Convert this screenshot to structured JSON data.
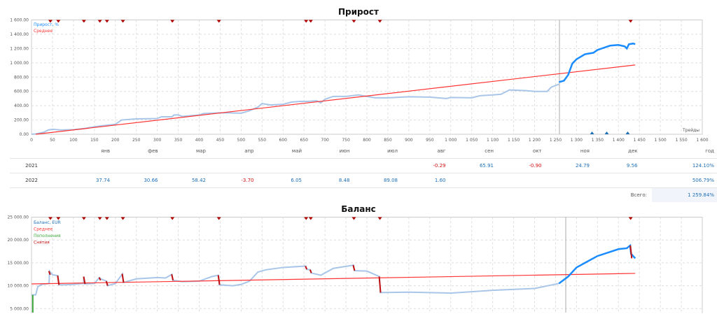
{
  "growth": {
    "title": "Прирост",
    "legend": [
      "Прирост, %",
      "Среднее"
    ],
    "x_axis_label": "Трейды",
    "y_ticks": [
      "0.00",
      "200.00",
      "400.00",
      "600.00",
      "800.00",
      "1 000.00",
      "1 200.00",
      "1 400.00",
      "1 600.00"
    ],
    "x_ticks": [
      "0",
      "50",
      "100",
      "150",
      "200",
      "250",
      "300",
      "350",
      "400",
      "450",
      "500",
      "550",
      "600",
      "650",
      "700",
      "750",
      "800",
      "850",
      "900",
      "950",
      "1 000",
      "1 050",
      "1 100",
      "1 150",
      "1 200",
      "1 250",
      "1 300",
      "1 350",
      "1 400",
      "1 450",
      "1 500",
      "1 550",
      "1 600"
    ],
    "colors": {
      "history": "#a9c6e8",
      "forward": "#1a8cff",
      "average": "#ff3333",
      "marker_top": "#b00000",
      "marker_bottom": "#1f6fb5"
    },
    "history": [
      [
        0,
        0
      ],
      [
        10,
        5
      ],
      [
        30,
        30
      ],
      [
        40,
        60
      ],
      [
        50,
        70
      ],
      [
        70,
        60
      ],
      [
        100,
        65
      ],
      [
        125,
        80
      ],
      [
        150,
        105
      ],
      [
        170,
        120
      ],
      [
        200,
        140
      ],
      [
        215,
        200
      ],
      [
        250,
        215
      ],
      [
        300,
        220
      ],
      [
        310,
        245
      ],
      [
        335,
        245
      ],
      [
        340,
        270
      ],
      [
        350,
        270
      ],
      [
        360,
        250
      ],
      [
        400,
        270
      ],
      [
        410,
        290
      ],
      [
        450,
        300
      ],
      [
        470,
        300
      ],
      [
        500,
        295
      ],
      [
        520,
        330
      ],
      [
        540,
        380
      ],
      [
        550,
        430
      ],
      [
        570,
        410
      ],
      [
        600,
        420
      ],
      [
        620,
        450
      ],
      [
        640,
        460
      ],
      [
        660,
        460
      ],
      [
        680,
        470
      ],
      [
        690,
        440
      ],
      [
        700,
        490
      ],
      [
        720,
        530
      ],
      [
        750,
        530
      ],
      [
        780,
        550
      ],
      [
        800,
        530
      ],
      [
        820,
        510
      ],
      [
        850,
        510
      ],
      [
        900,
        525
      ],
      [
        950,
        520
      ],
      [
        990,
        500
      ],
      [
        1000,
        515
      ],
      [
        1050,
        510
      ],
      [
        1070,
        540
      ],
      [
        1100,
        550
      ],
      [
        1120,
        560
      ],
      [
        1140,
        620
      ],
      [
        1180,
        610
      ],
      [
        1200,
        600
      ],
      [
        1230,
        600
      ],
      [
        1240,
        660
      ],
      [
        1258,
        700
      ]
    ],
    "forward": [
      [
        1258,
        730
      ],
      [
        1270,
        750
      ],
      [
        1280,
        830
      ],
      [
        1290,
        990
      ],
      [
        1300,
        1050
      ],
      [
        1320,
        1120
      ],
      [
        1330,
        1130
      ],
      [
        1340,
        1140
      ],
      [
        1350,
        1180
      ],
      [
        1360,
        1200
      ],
      [
        1380,
        1240
      ],
      [
        1400,
        1250
      ],
      [
        1415,
        1230
      ],
      [
        1420,
        1200
      ],
      [
        1425,
        1260
      ],
      [
        1435,
        1270
      ],
      [
        1440,
        1260
      ]
    ],
    "average": [
      [
        10,
        0
      ],
      [
        1440,
        970
      ]
    ],
    "top_markers": [
      45,
      64,
      125,
      163,
      180,
      218,
      336,
      447,
      655,
      666,
      769,
      831,
      1429
    ],
    "bottom_markers": [
      1337,
      1372,
      1422
    ]
  },
  "table": {
    "months": [
      "янв",
      "фев",
      "мар",
      "апр",
      "май",
      "июн",
      "июл",
      "авг",
      "сен",
      "окт",
      "ноя",
      "дек"
    ],
    "year_label": "год",
    "rows": [
      {
        "year": "2021",
        "values": [
          "",
          "",
          "",
          "",
          "",
          "",
          "",
          "-0.29",
          "65.91",
          "-0.90",
          "24.79",
          "9.56"
        ],
        "total": "124.10%"
      },
      {
        "year": "2022",
        "values": [
          "37.74",
          "30.66",
          "58.42",
          "-3.70",
          "6.05",
          "8.48",
          "89.08",
          "1.60",
          "",
          "",
          "",
          ""
        ],
        "total": "506.79%"
      }
    ],
    "total_label": "Всего:",
    "total_value": "1 259.84%"
  },
  "balance": {
    "title": "Баланс",
    "legend": [
      "Баланс, EUR",
      "Среднее",
      "Пополнения",
      "Снятия"
    ],
    "legend_colors": [
      "#1f6fb5",
      "#ff3333",
      "#3aa63a",
      "#c01010"
    ],
    "y_ticks": [
      "5 000.00",
      "10 000.00",
      "15 000.00",
      "20 000.00",
      "25 000.00"
    ],
    "history": [
      [
        0,
        8000
      ],
      [
        10,
        8000
      ],
      [
        15,
        9800
      ],
      [
        25,
        10300
      ],
      [
        42,
        10500
      ],
      [
        43,
        13200
      ],
      [
        50,
        12400
      ],
      [
        63,
        12200
      ],
      [
        65,
        10200
      ],
      [
        80,
        10200
      ],
      [
        100,
        10300
      ],
      [
        124,
        10500
      ],
      [
        125,
        12000
      ],
      [
        127,
        10400
      ],
      [
        150,
        10500
      ],
      [
        162,
        11800
      ],
      [
        165,
        11500
      ],
      [
        179,
        11000
      ],
      [
        181,
        10000
      ],
      [
        200,
        10500
      ],
      [
        217,
        12600
      ],
      [
        219,
        10700
      ],
      [
        250,
        11500
      ],
      [
        300,
        11800
      ],
      [
        320,
        11700
      ],
      [
        335,
        12500
      ],
      [
        337,
        11200
      ],
      [
        360,
        10900
      ],
      [
        400,
        11000
      ],
      [
        430,
        12000
      ],
      [
        446,
        12300
      ],
      [
        448,
        10200
      ],
      [
        480,
        10000
      ],
      [
        500,
        10300
      ],
      [
        520,
        11000
      ],
      [
        540,
        13000
      ],
      [
        560,
        13500
      ],
      [
        600,
        14000
      ],
      [
        654,
        14300
      ],
      [
        656,
        13600
      ],
      [
        665,
        13500
      ],
      [
        667,
        12800
      ],
      [
        690,
        12300
      ],
      [
        720,
        13800
      ],
      [
        768,
        14500
      ],
      [
        770,
        13300
      ],
      [
        800,
        13200
      ],
      [
        830,
        12000
      ],
      [
        832,
        8500
      ],
      [
        900,
        8600
      ],
      [
        1000,
        8400
      ],
      [
        1100,
        9000
      ],
      [
        1200,
        9400
      ],
      [
        1258,
        10500
      ]
    ],
    "forward": [
      [
        1258,
        10500
      ],
      [
        1280,
        12000
      ],
      [
        1300,
        14000
      ],
      [
        1330,
        15500
      ],
      [
        1350,
        16500
      ],
      [
        1400,
        18000
      ],
      [
        1420,
        18200
      ],
      [
        1428,
        18800
      ],
      [
        1430,
        17000
      ],
      [
        1440,
        16000
      ]
    ],
    "average": [
      [
        0,
        10400
      ],
      [
        1440,
        12700
      ]
    ],
    "deposits": [
      [
        3,
        0,
        8000
      ]
    ],
    "withdrawals": [
      [
        43,
        13200,
        12400
      ],
      [
        64,
        12200,
        10200
      ],
      [
        126,
        12000,
        10400
      ],
      [
        163,
        11800,
        11200
      ],
      [
        180,
        11000,
        10000
      ],
      [
        218,
        12600,
        10700
      ],
      [
        336,
        12500,
        11200
      ],
      [
        447,
        12300,
        10200
      ],
      [
        655,
        14300,
        13600
      ],
      [
        666,
        13500,
        12800
      ],
      [
        769,
        14500,
        13300
      ],
      [
        831,
        12000,
        8500
      ],
      [
        1430,
        18800,
        16000
      ]
    ],
    "top_markers": [
      45,
      64,
      125,
      163,
      180,
      218,
      336,
      447,
      655,
      666,
      769,
      831,
      1429
    ]
  }
}
